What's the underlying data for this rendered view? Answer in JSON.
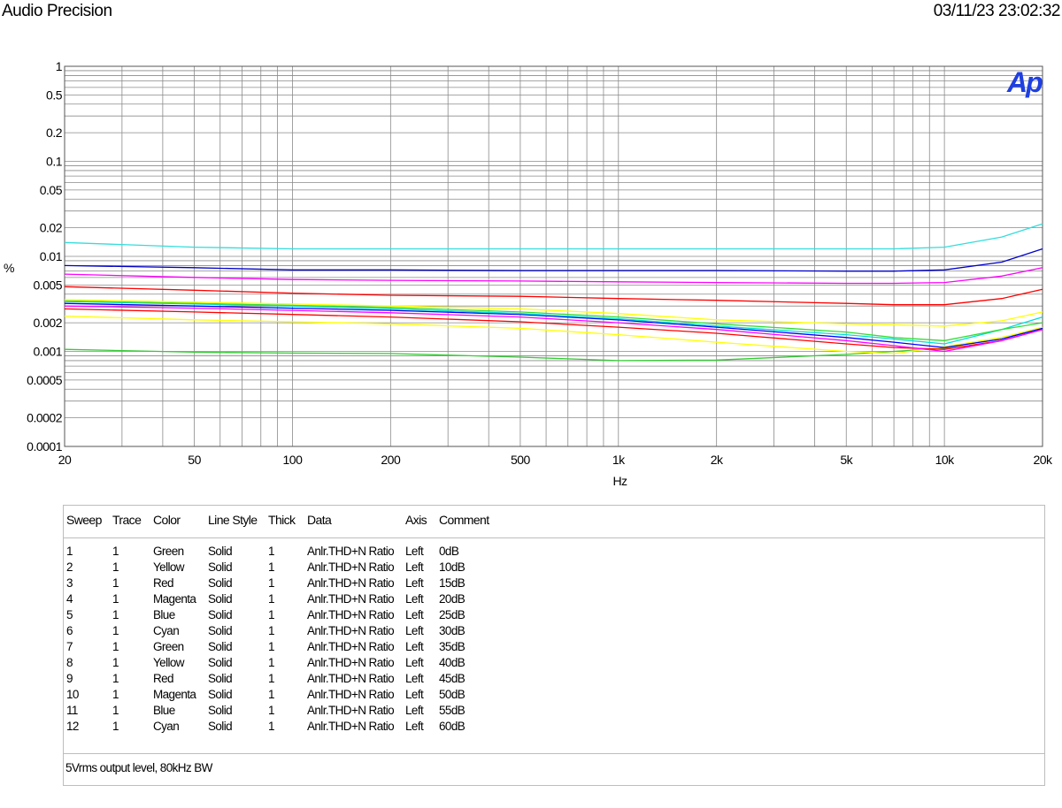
{
  "header": {
    "title": "Audio Precision",
    "timestamp": "03/11/23 23:02:32"
  },
  "chart_data": {
    "type": "line",
    "xlabel": "Hz",
    "ylabel": "%",
    "xscale": "log",
    "yscale": "log",
    "xlim": [
      20,
      20000
    ],
    "ylim": [
      0.0001,
      1
    ],
    "grid": true,
    "xticks": [
      {
        "v": 20,
        "label": "20"
      },
      {
        "v": 50,
        "label": "50"
      },
      {
        "v": 100,
        "label": "100"
      },
      {
        "v": 200,
        "label": "200"
      },
      {
        "v": 500,
        "label": "500"
      },
      {
        "v": 1000,
        "label": "1k"
      },
      {
        "v": 2000,
        "label": "2k"
      },
      {
        "v": 5000,
        "label": "5k"
      },
      {
        "v": 10000,
        "label": "10k"
      },
      {
        "v": 20000,
        "label": "20k"
      }
    ],
    "yticks": [
      {
        "v": 1,
        "label": "1"
      },
      {
        "v": 0.5,
        "label": "0.5"
      },
      {
        "v": 0.2,
        "label": "0.2"
      },
      {
        "v": 0.1,
        "label": "0.1"
      },
      {
        "v": 0.05,
        "label": "0.05"
      },
      {
        "v": 0.02,
        "label": "0.02"
      },
      {
        "v": 0.01,
        "label": "0.01"
      },
      {
        "v": 0.005,
        "label": "0.005"
      },
      {
        "v": 0.002,
        "label": "0.002"
      },
      {
        "v": 0.001,
        "label": "0.001"
      },
      {
        "v": 0.0005,
        "label": "0.0005"
      },
      {
        "v": 0.0002,
        "label": "0.0002"
      },
      {
        "v": 0.0001,
        "label": "0.0001"
      }
    ],
    "x": [
      20,
      50,
      100,
      200,
      500,
      1000,
      2000,
      5000,
      7000,
      10000,
      15000,
      20000
    ],
    "series": [
      {
        "name": "0dB",
        "color": "#33cc33",
        "values": [
          0.00105,
          0.00098,
          0.00096,
          0.00095,
          0.00087,
          0.0008,
          0.00081,
          0.00093,
          0.001,
          0.00108,
          0.0014,
          0.00175
        ]
      },
      {
        "name": "10dB",
        "color": "#ffff00",
        "values": [
          0.00235,
          0.00215,
          0.00205,
          0.00195,
          0.00175,
          0.0015,
          0.00125,
          0.001,
          0.00095,
          0.00112,
          0.0014,
          0.0018
        ]
      },
      {
        "name": "15dB",
        "color": "#ff0000",
        "values": [
          0.0028,
          0.0026,
          0.00245,
          0.0023,
          0.00205,
          0.0018,
          0.00155,
          0.0012,
          0.0011,
          0.00105,
          0.0013,
          0.0017
        ]
      },
      {
        "name": "20dB",
        "color": "#ff00ff",
        "values": [
          0.003,
          0.00285,
          0.0027,
          0.00255,
          0.0023,
          0.002,
          0.0017,
          0.0013,
          0.00115,
          0.001,
          0.0013,
          0.0017
        ]
      },
      {
        "name": "25dB",
        "color": "#0000ff",
        "values": [
          0.0032,
          0.003,
          0.00285,
          0.0027,
          0.00245,
          0.00215,
          0.0018,
          0.0014,
          0.00125,
          0.0011,
          0.00135,
          0.00175
        ]
      },
      {
        "name": "30dB",
        "color": "#00dddd",
        "values": [
          0.00335,
          0.00315,
          0.003,
          0.0028,
          0.0025,
          0.0022,
          0.00185,
          0.0015,
          0.00135,
          0.0012,
          0.0017,
          0.0023
        ]
      },
      {
        "name": "35dB",
        "color": "#33dd33",
        "values": [
          0.0034,
          0.0032,
          0.00305,
          0.0029,
          0.0026,
          0.0023,
          0.00195,
          0.0016,
          0.0014,
          0.0013,
          0.0017,
          0.002
        ]
      },
      {
        "name": "40dB",
        "color": "#ffff00",
        "values": [
          0.0035,
          0.0033,
          0.00315,
          0.003,
          0.0028,
          0.0025,
          0.00215,
          0.00195,
          0.0019,
          0.00185,
          0.0021,
          0.0026
        ]
      },
      {
        "name": "45dB",
        "color": "#ff0000",
        "values": [
          0.0048,
          0.0044,
          0.0041,
          0.0039,
          0.0038,
          0.0036,
          0.00345,
          0.0032,
          0.0031,
          0.0031,
          0.0036,
          0.0045
        ]
      },
      {
        "name": "50dB",
        "color": "#ff00ff",
        "values": [
          0.0065,
          0.006,
          0.0057,
          0.0056,
          0.0055,
          0.0054,
          0.0053,
          0.0052,
          0.0052,
          0.0053,
          0.0062,
          0.0076
        ]
      },
      {
        "name": "55dB",
        "color": "#0000cc",
        "values": [
          0.008,
          0.0076,
          0.0072,
          0.0072,
          0.0071,
          0.0071,
          0.0071,
          0.007,
          0.007,
          0.0072,
          0.0087,
          0.012
        ]
      },
      {
        "name": "60dB",
        "color": "#33dddd",
        "values": [
          0.014,
          0.0125,
          0.012,
          0.012,
          0.012,
          0.012,
          0.012,
          0.012,
          0.012,
          0.0125,
          0.016,
          0.022
        ]
      }
    ]
  },
  "legend": {
    "headers": {
      "sweep": "Sweep",
      "trace": "Trace",
      "color": "Color",
      "line_style": "Line Style",
      "thick": "Thick",
      "data": "Data",
      "axis": "Axis",
      "comment": "Comment"
    },
    "rows": [
      {
        "sweep": "1",
        "trace": "1",
        "color": "Green",
        "line_style": "Solid",
        "thick": "1",
        "data": "Anlr.THD+N Ratio",
        "axis": "Left",
        "comment": "0dB"
      },
      {
        "sweep": "2",
        "trace": "1",
        "color": "Yellow",
        "line_style": "Solid",
        "thick": "1",
        "data": "Anlr.THD+N Ratio",
        "axis": "Left",
        "comment": "10dB"
      },
      {
        "sweep": "3",
        "trace": "1",
        "color": "Red",
        "line_style": "Solid",
        "thick": "1",
        "data": "Anlr.THD+N Ratio",
        "axis": "Left",
        "comment": "15dB"
      },
      {
        "sweep": "4",
        "trace": "1",
        "color": "Magenta",
        "line_style": "Solid",
        "thick": "1",
        "data": "Anlr.THD+N Ratio",
        "axis": "Left",
        "comment": "20dB"
      },
      {
        "sweep": "5",
        "trace": "1",
        "color": "Blue",
        "line_style": "Solid",
        "thick": "1",
        "data": "Anlr.THD+N Ratio",
        "axis": "Left",
        "comment": "25dB"
      },
      {
        "sweep": "6",
        "trace": "1",
        "color": "Cyan",
        "line_style": "Solid",
        "thick": "1",
        "data": "Anlr.THD+N Ratio",
        "axis": "Left",
        "comment": "30dB"
      },
      {
        "sweep": "7",
        "trace": "1",
        "color": "Green",
        "line_style": "Solid",
        "thick": "1",
        "data": "Anlr.THD+N Ratio",
        "axis": "Left",
        "comment": "35dB"
      },
      {
        "sweep": "8",
        "trace": "1",
        "color": "Yellow",
        "line_style": "Solid",
        "thick": "1",
        "data": "Anlr.THD+N Ratio",
        "axis": "Left",
        "comment": "40dB"
      },
      {
        "sweep": "9",
        "trace": "1",
        "color": "Red",
        "line_style": "Solid",
        "thick": "1",
        "data": "Anlr.THD+N Ratio",
        "axis": "Left",
        "comment": "45dB"
      },
      {
        "sweep": "10",
        "trace": "1",
        "color": "Magenta",
        "line_style": "Solid",
        "thick": "1",
        "data": "Anlr.THD+N Ratio",
        "axis": "Left",
        "comment": "50dB"
      },
      {
        "sweep": "11",
        "trace": "1",
        "color": "Blue",
        "line_style": "Solid",
        "thick": "1",
        "data": "Anlr.THD+N Ratio",
        "axis": "Left",
        "comment": "55dB"
      },
      {
        "sweep": "12",
        "trace": "1",
        "color": "Cyan",
        "line_style": "Solid",
        "thick": "1",
        "data": "Anlr.THD+N Ratio",
        "axis": "Left",
        "comment": "60dB"
      }
    ]
  },
  "footer_comment": "5Vrms output level, 80kHz BW",
  "logo": {
    "text": "Ap",
    "color": "#1f3fe0"
  }
}
